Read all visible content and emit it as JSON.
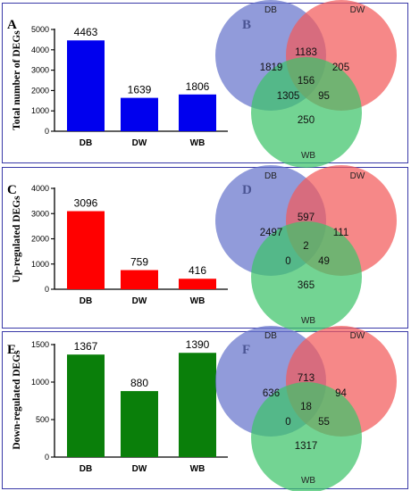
{
  "chart_data": [
    {
      "panel": "A",
      "type": "bar",
      "categories": [
        "DB",
        "DW",
        "WB"
      ],
      "values": [
        4463,
        1639,
        1806
      ],
      "ylabel": "Total number of DEGs",
      "ylim": [
        0,
        5000
      ],
      "yticks": [
        0,
        1000,
        2000,
        3000,
        4000,
        5000
      ],
      "color": "#0000ee"
    },
    {
      "panel": "C",
      "type": "bar",
      "categories": [
        "DB",
        "DW",
        "WB"
      ],
      "values": [
        3096,
        759,
        416
      ],
      "ylabel": "Up-regulated DEGs",
      "ylim": [
        0,
        4000
      ],
      "yticks": [
        0,
        1000,
        2000,
        3000,
        4000
      ],
      "color": "#ff0000"
    },
    {
      "panel": "E",
      "type": "bar",
      "categories": [
        "DB",
        "DW",
        "WB"
      ],
      "values": [
        1367,
        880,
        1390
      ],
      "ylabel": "Down-regulated DEGs",
      "ylim": [
        0,
        1500
      ],
      "yticks": [
        0,
        500,
        1000,
        1500
      ],
      "color": "#0a7f0a"
    }
  ],
  "venns": [
    {
      "panel": "B",
      "sets": [
        "DB",
        "DW",
        "WB"
      ],
      "regions": {
        "db_only": "1819",
        "db_dw": "1183",
        "dw_only": "205",
        "all": "156",
        "db_wb": "1305",
        "dw_wb": "95",
        "wb_only": "250"
      }
    },
    {
      "panel": "D",
      "sets": [
        "DB",
        "DW",
        "WB"
      ],
      "regions": {
        "db_only": "2497",
        "db_dw": "597",
        "dw_only": "111",
        "all": "2",
        "db_wb": "0",
        "dw_wb": "49",
        "wb_only": "365"
      }
    },
    {
      "panel": "F",
      "sets": [
        "DB",
        "DW",
        "WB"
      ],
      "regions": {
        "db_only": "636",
        "db_dw": "713",
        "dw_only": "94",
        "all": "18",
        "db_wb": "0",
        "dw_wb": "55",
        "wb_only": "1317"
      }
    }
  ],
  "venn_colors": {
    "DB": "#6674cc",
    "DW": "#f25a5a",
    "WB": "#3dc36a"
  }
}
